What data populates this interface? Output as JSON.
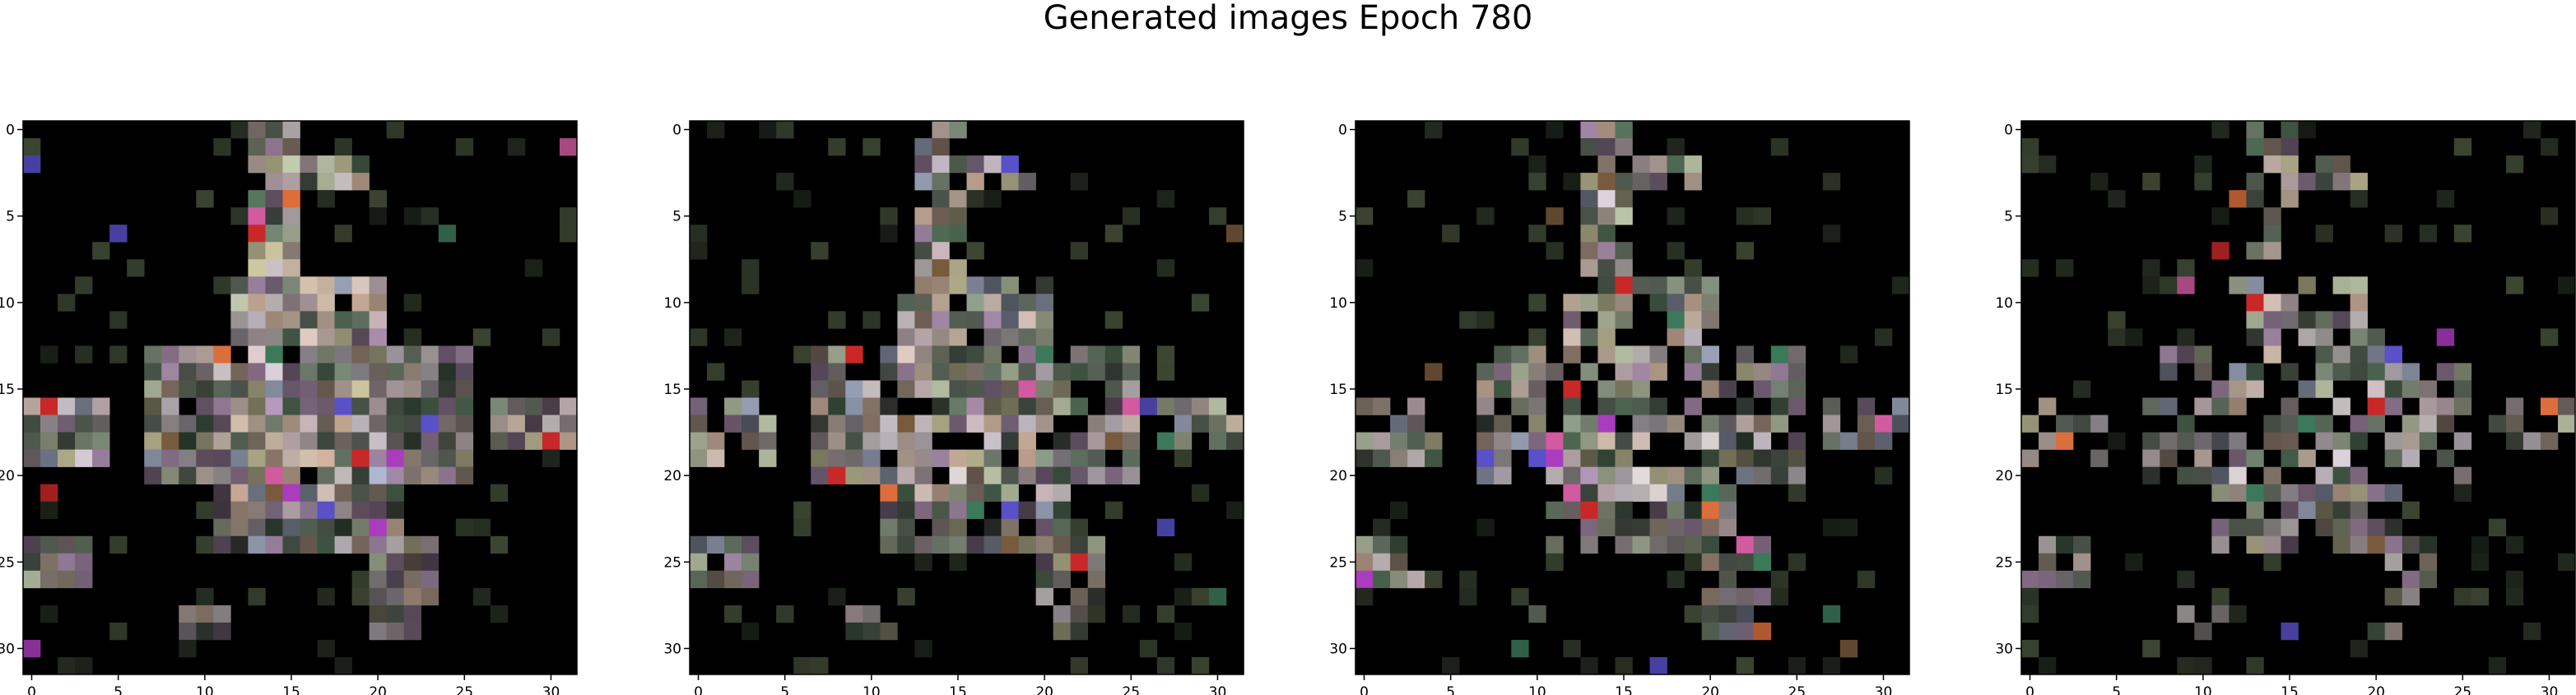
{
  "title": "Generated images Epoch 780",
  "chart_data": [
    {
      "type": "heatmap",
      "grid": 32,
      "xlim": [
        -0.5,
        31.5
      ],
      "ylim": [
        31.5,
        -0.5
      ],
      "xticks": [
        0,
        5,
        10,
        15,
        20,
        25,
        30
      ],
      "yticks": [
        0,
        5,
        10,
        15,
        20,
        25,
        30
      ],
      "xtick_labels": [
        "0",
        "5",
        "10",
        "15",
        "20",
        "25",
        "30"
      ],
      "ytick_labels": [
        "0",
        "5",
        "10",
        "15",
        "20",
        "25",
        "30"
      ]
    },
    {
      "type": "heatmap",
      "grid": 32,
      "xlim": [
        -0.5,
        31.5
      ],
      "ylim": [
        31.5,
        -0.5
      ],
      "xticks": [
        0,
        5,
        10,
        15,
        20,
        25,
        30
      ],
      "yticks": [
        0,
        5,
        10,
        15,
        20,
        25,
        30
      ],
      "xtick_labels": [
        "0",
        "5",
        "10",
        "15",
        "20",
        "25",
        "30"
      ],
      "ytick_labels": [
        "0",
        "5",
        "10",
        "15",
        "20",
        "25",
        "30"
      ]
    },
    {
      "type": "heatmap",
      "grid": 32,
      "xlim": [
        -0.5,
        31.5
      ],
      "ylim": [
        31.5,
        -0.5
      ],
      "xticks": [
        0,
        5,
        10,
        15,
        20,
        25,
        30
      ],
      "yticks": [
        0,
        5,
        10,
        15,
        20,
        25,
        30
      ],
      "xtick_labels": [
        "0",
        "5",
        "10",
        "15",
        "20",
        "25",
        "30"
      ],
      "ytick_labels": [
        "0",
        "5",
        "10",
        "15",
        "20",
        "25",
        "30"
      ]
    },
    {
      "type": "heatmap",
      "grid": 32,
      "xlim": [
        -0.5,
        31.5
      ],
      "ylim": [
        31.5,
        -0.5
      ],
      "xticks": [
        0,
        5,
        10,
        15,
        20,
        25,
        30
      ],
      "yticks": [
        0,
        5,
        10,
        15,
        20,
        25,
        30
      ],
      "xtick_labels": [
        "0",
        "5",
        "10",
        "15",
        "20",
        "25",
        "30"
      ],
      "ytick_labels": [
        "0",
        "5",
        "10",
        "15",
        "20",
        "25",
        "30"
      ]
    }
  ]
}
